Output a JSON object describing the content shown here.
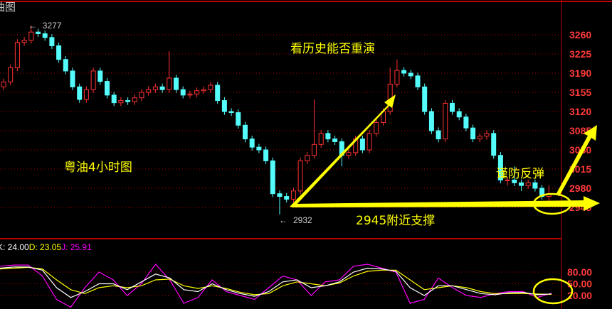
{
  "header": {
    "title": "油图"
  },
  "colors": {
    "up": "#ff3232",
    "down": "#54fcfc",
    "grid": "#b00000",
    "axis": "#ff3a3a",
    "annotation": "#ffff00",
    "k": "#ffffff",
    "d": "#ffff00",
    "j": "#ff00ff"
  },
  "annotations": {
    "chart_label": "粤油4小时图",
    "question": "看历史能否重演",
    "warning": "谨防反弹",
    "support": "2945附近支撑"
  },
  "chart_data": [
    {
      "type": "candlestick",
      "yaxis_ticks": [
        3260,
        3225,
        3190,
        3155,
        3120,
        3085,
        3050,
        3015,
        2980,
        2945
      ],
      "ylim": [
        2925,
        3290
      ],
      "grid": true,
      "extreme_high": {
        "label": "3277",
        "value": 3277,
        "index": 4
      },
      "extreme_low": {
        "label": "2932",
        "value": 2932,
        "index": 40
      },
      "open": [
        3165,
        3174,
        3200,
        3246,
        3250,
        3265,
        3262,
        3255,
        3240,
        3215,
        3194,
        3165,
        3142,
        3160,
        3194,
        3175,
        3150,
        3136,
        3140,
        3138,
        3145,
        3155,
        3160,
        3165,
        3160,
        3181,
        3160,
        3150,
        3152,
        3158,
        3160,
        3168,
        3140,
        3120,
        3118,
        3095,
        3070,
        3055,
        3050,
        3030,
        2970,
        2965,
        2960,
        2975,
        3030,
        3040,
        3060,
        3080,
        3070,
        3065,
        3040,
        3045,
        3070,
        3050,
        3080,
        3100,
        3120,
        3170,
        3195,
        3190,
        3185,
        3165,
        3120,
        3085,
        3070,
        3135,
        3120,
        3110,
        3090,
        3070,
        3075,
        3080,
        3040,
        2995,
        2995,
        2990,
        2985,
        2990,
        2980,
        2965
      ],
      "high": [
        3180,
        3206,
        3252,
        3256,
        3277,
        3271,
        3268,
        3261,
        3246,
        3221,
        3200,
        3171,
        3166,
        3200,
        3200,
        3181,
        3156,
        3146,
        3146,
        3151,
        3161,
        3166,
        3171,
        3171,
        3230,
        3187,
        3166,
        3158,
        3164,
        3166,
        3174,
        3174,
        3146,
        3126,
        3124,
        3101,
        3076,
        3061,
        3056,
        3036,
        2976,
        2971,
        2981,
        3036,
        3046,
        3142,
        3086,
        3086,
        3076,
        3071,
        3051,
        3076,
        3076,
        3086,
        3106,
        3126,
        3200,
        3215,
        3201,
        3196,
        3191,
        3171,
        3126,
        3091,
        3141,
        3141,
        3126,
        3116,
        3096,
        3081,
        3086,
        3086,
        3046,
        3001,
        3020,
        2996,
        2996,
        2996,
        2986,
        2985
      ],
      "low": [
        3159,
        3168,
        3194,
        3240,
        3244,
        3256,
        3249,
        3234,
        3209,
        3188,
        3159,
        3136,
        3136,
        3154,
        3169,
        3144,
        3130,
        3130,
        3132,
        3132,
        3139,
        3149,
        3154,
        3154,
        3154,
        3154,
        3144,
        3144,
        3146,
        3152,
        3154,
        3134,
        3114,
        3112,
        3089,
        3064,
        3049,
        3044,
        3024,
        2964,
        2932,
        2954,
        2954,
        2969,
        3024,
        3034,
        3054,
        3064,
        3059,
        3020,
        3034,
        3039,
        3044,
        3044,
        3074,
        3094,
        3114,
        3164,
        3184,
        3179,
        3159,
        3114,
        3079,
        3064,
        3064,
        3114,
        3104,
        3084,
        3064,
        3064,
        3069,
        3034,
        2989,
        2985,
        2984,
        2975,
        2979,
        2974,
        2959,
        2955
      ],
      "close": [
        3174,
        3200,
        3246,
        3250,
        3265,
        3262,
        3255,
        3240,
        3215,
        3194,
        3165,
        3142,
        3160,
        3194,
        3175,
        3150,
        3136,
        3140,
        3138,
        3145,
        3155,
        3160,
        3165,
        3160,
        3181,
        3160,
        3150,
        3152,
        3158,
        3160,
        3168,
        3140,
        3120,
        3118,
        3095,
        3070,
        3055,
        3050,
        3030,
        2970,
        2965,
        2960,
        2975,
        3030,
        3040,
        3060,
        3080,
        3070,
        3065,
        3040,
        3045,
        3070,
        3050,
        3080,
        3100,
        3120,
        3170,
        3195,
        3190,
        3185,
        3165,
        3120,
        3085,
        3070,
        3135,
        3120,
        3110,
        3090,
        3070,
        3075,
        3080,
        3040,
        2995,
        2995,
        2990,
        2985,
        2990,
        2980,
        2965,
        2970
      ]
    },
    {
      "type": "line",
      "indicator": "KDJ",
      "legend": [
        {
          "label": "K: 24.00",
          "key": "k"
        },
        {
          "label": "D: 23.05",
          "key": "d"
        },
        {
          "label": "J: 25.91",
          "key": "j"
        }
      ],
      "yaxis_ticks": [
        "80.00",
        "50.00",
        "20.00"
      ],
      "tick_values": [
        80,
        50,
        20
      ],
      "grid": true,
      "series": [
        {
          "key": "k",
          "values": [
            90,
            93,
            93,
            85,
            40,
            15,
            30,
            50,
            50,
            35,
            55,
            75,
            65,
            35,
            30,
            50,
            35,
            25,
            18,
            30,
            55,
            60,
            40,
            45,
            55,
            80,
            90,
            88,
            82,
            40,
            20,
            45,
            45,
            35,
            25,
            22,
            27,
            28,
            22,
            24
          ]
        },
        {
          "key": "d",
          "values": [
            88,
            90,
            92,
            88,
            60,
            35,
            25,
            40,
            45,
            40,
            45,
            60,
            62,
            45,
            38,
            45,
            38,
            28,
            22,
            25,
            45,
            55,
            50,
            45,
            52,
            70,
            82,
            85,
            85,
            60,
            35,
            40,
            45,
            40,
            30,
            25,
            25,
            25,
            24,
            23
          ]
        },
        {
          "key": "j",
          "values": [
            95,
            98,
            98,
            70,
            10,
            -10,
            40,
            80,
            60,
            20,
            50,
            100,
            60,
            0,
            15,
            60,
            30,
            20,
            10,
            40,
            70,
            60,
            20,
            55,
            60,
            95,
            100,
            90,
            80,
            0,
            10,
            65,
            40,
            20,
            15,
            25,
            30,
            30,
            15,
            26
          ]
        }
      ]
    }
  ]
}
